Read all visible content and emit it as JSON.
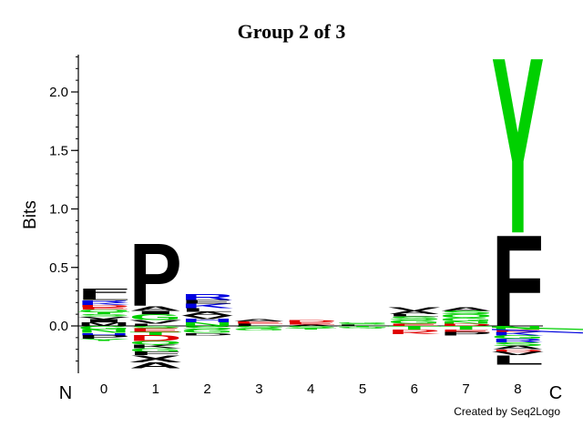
{
  "chart_data": {
    "type": "sequence-logo",
    "title": "Group 2 of 3",
    "ylabel": "Bits",
    "ylim": [
      -0.38,
      2.35
    ],
    "yticks": [
      "0.0",
      "0.5",
      "1.0",
      "1.5",
      "2.0"
    ],
    "ytick_values": [
      0.0,
      0.5,
      1.0,
      1.5,
      2.0
    ],
    "positions": [
      "0",
      "1",
      "2",
      "3",
      "4",
      "5",
      "6",
      "7",
      "8"
    ],
    "n_label": "N",
    "c_label": "C",
    "colors": {
      "green": "#00d000",
      "blue": "#0000e0",
      "red": "#e00000",
      "black": "#000000"
    },
    "stacks": [
      {
        "pos": "0",
        "letters": [
          {
            "aa": "M",
            "bits": 0.03,
            "color": "black"
          },
          {
            "aa": "I",
            "bits": 0.03,
            "color": "black"
          },
          {
            "aa": "V",
            "bits": 0.02,
            "color": "black"
          },
          {
            "aa": "S",
            "bits": 0.02,
            "color": "green"
          },
          {
            "aa": "T",
            "bits": 0.02,
            "color": "green"
          },
          {
            "aa": "Q",
            "bits": 0.02,
            "color": "green"
          },
          {
            "aa": "E",
            "bits": 0.02,
            "color": "red"
          },
          {
            "aa": "D",
            "bits": 0.02,
            "color": "red"
          },
          {
            "aa": "K",
            "bits": 0.02,
            "color": "blue"
          },
          {
            "aa": "R",
            "bits": 0.02,
            "color": "blue"
          },
          {
            "aa": "L",
            "bits": 0.04,
            "color": "black"
          },
          {
            "aa": "F",
            "bits": 0.06,
            "color": "black"
          }
        ],
        "neg": [
          {
            "aa": "G",
            "bits": 0.03,
            "color": "green"
          },
          {
            "aa": "N",
            "bits": 0.03,
            "color": "green"
          },
          {
            "aa": "H",
            "bits": 0.02,
            "color": "blue"
          },
          {
            "aa": "P",
            "bits": 0.03,
            "color": "black"
          },
          {
            "aa": "Y",
            "bits": 0.02,
            "color": "green"
          }
        ]
      },
      {
        "pos": "1",
        "letters": [
          {
            "aa": "L",
            "bits": 0.02,
            "color": "black"
          },
          {
            "aa": "V",
            "bits": 0.03,
            "color": "black"
          },
          {
            "aa": "G",
            "bits": 0.05,
            "color": "green"
          },
          {
            "aa": "I",
            "bits": 0.03,
            "color": "black"
          },
          {
            "aa": "A",
            "bits": 0.04,
            "color": "black"
          },
          {
            "aa": "P",
            "bits": 0.55,
            "color": "black"
          }
        ],
        "neg": [
          {
            "aa": "S",
            "bits": 0.02,
            "color": "green"
          },
          {
            "aa": "E",
            "bits": 0.03,
            "color": "red"
          },
          {
            "aa": "T",
            "bits": 0.03,
            "color": "green"
          },
          {
            "aa": "D",
            "bits": 0.05,
            "color": "red"
          },
          {
            "aa": "Q",
            "bits": 0.03,
            "color": "green"
          },
          {
            "aa": "K",
            "bits": 0.03,
            "color": "black"
          },
          {
            "aa": "G",
            "bits": 0.03,
            "color": "green"
          },
          {
            "aa": "F",
            "bits": 0.03,
            "color": "black"
          },
          {
            "aa": "X",
            "bits": 0.06,
            "color": "black"
          },
          {
            "aa": "A",
            "bits": 0.05,
            "color": "black"
          }
        ]
      },
      {
        "pos": "2",
        "letters": [
          {
            "aa": "N",
            "bits": 0.03,
            "color": "green"
          },
          {
            "aa": "H",
            "bits": 0.03,
            "color": "blue"
          },
          {
            "aa": "V",
            "bits": 0.03,
            "color": "black"
          },
          {
            "aa": "A",
            "bits": 0.03,
            "color": "black"
          },
          {
            "aa": "L",
            "bits": 0.03,
            "color": "black"
          },
          {
            "aa": "K",
            "bits": 0.04,
            "color": "blue"
          },
          {
            "aa": "E",
            "bits": 0.03,
            "color": "black"
          },
          {
            "aa": "R",
            "bits": 0.05,
            "color": "blue"
          }
        ],
        "neg": [
          {
            "aa": "S",
            "bits": 0.03,
            "color": "green"
          },
          {
            "aa": "G",
            "bits": 0.03,
            "color": "green"
          },
          {
            "aa": "D",
            "bits": 0.02,
            "color": "black"
          }
        ]
      },
      {
        "pos": "3",
        "letters": [
          {
            "aa": "L",
            "bits": 0.02,
            "color": "black"
          },
          {
            "aa": "E",
            "bits": 0.02,
            "color": "red"
          },
          {
            "aa": "A",
            "bits": 0.02,
            "color": "black"
          }
        ],
        "neg": [
          {
            "aa": "S",
            "bits": 0.02,
            "color": "green"
          },
          {
            "aa": "G",
            "bits": 0.02,
            "color": "green"
          }
        ]
      },
      {
        "pos": "4",
        "letters": [
          {
            "aa": "A",
            "bits": 0.01,
            "color": "black"
          },
          {
            "aa": "E",
            "bits": 0.02,
            "color": "red"
          },
          {
            "aa": "D",
            "bits": 0.02,
            "color": "red"
          }
        ],
        "neg": [
          {
            "aa": "S",
            "bits": 0.02,
            "color": "green"
          },
          {
            "aa": "T",
            "bits": 0.01,
            "color": "green"
          }
        ]
      },
      {
        "pos": "5",
        "letters": [
          {
            "aa": "L",
            "bits": 0.01,
            "color": "black"
          },
          {
            "aa": "S",
            "bits": 0.01,
            "color": "green"
          },
          {
            "aa": "G",
            "bits": 0.01,
            "color": "green"
          }
        ],
        "neg": [
          {
            "aa": "T",
            "bits": 0.01,
            "color": "green"
          },
          {
            "aa": "Q",
            "bits": 0.01,
            "color": "green"
          }
        ]
      },
      {
        "pos": "6",
        "letters": [
          {
            "aa": "E",
            "bits": 0.02,
            "color": "red"
          },
          {
            "aa": "G",
            "bits": 0.03,
            "color": "green"
          },
          {
            "aa": "S",
            "bits": 0.03,
            "color": "green"
          },
          {
            "aa": "L",
            "bits": 0.02,
            "color": "black"
          },
          {
            "aa": "A",
            "bits": 0.03,
            "color": "black"
          },
          {
            "aa": "V",
            "bits": 0.03,
            "color": "black"
          }
        ],
        "neg": [
          {
            "aa": "T",
            "bits": 0.03,
            "color": "green"
          },
          {
            "aa": "D",
            "bits": 0.02,
            "color": "red"
          },
          {
            "aa": "K",
            "bits": 0.02,
            "color": "red"
          }
        ]
      },
      {
        "pos": "7",
        "letters": [
          {
            "aa": "D",
            "bits": 0.02,
            "color": "red"
          },
          {
            "aa": "N",
            "bits": 0.02,
            "color": "green"
          },
          {
            "aa": "G",
            "bits": 0.03,
            "color": "green"
          },
          {
            "aa": "Q",
            "bits": 0.03,
            "color": "green"
          },
          {
            "aa": "S",
            "bits": 0.03,
            "color": "green"
          },
          {
            "aa": "A",
            "bits": 0.03,
            "color": "black"
          }
        ],
        "neg": [
          {
            "aa": "T",
            "bits": 0.03,
            "color": "green"
          },
          {
            "aa": "E",
            "bits": 0.02,
            "color": "red"
          },
          {
            "aa": "P",
            "bits": 0.03,
            "color": "black"
          }
        ]
      },
      {
        "pos": "8",
        "letters": [
          {
            "aa": "F",
            "bits": 0.8,
            "color": "black"
          },
          {
            "aa": "Y",
            "bits": 1.54,
            "color": "green"
          }
        ],
        "neg": [
          {
            "aa": "N",
            "bits": 0.03,
            "color": "green"
          },
          {
            "aa": "E",
            "bits": 0.02,
            "color": "red"
          },
          {
            "aa": "K",
            "bits": 0.03,
            "color": "blue"
          },
          {
            "aa": "G",
            "bits": 0.03,
            "color": "green"
          },
          {
            "aa": "R",
            "bits": 0.03,
            "color": "blue"
          },
          {
            "aa": "S",
            "bits": 0.03,
            "color": "green"
          },
          {
            "aa": "A",
            "bits": 0.03,
            "color": "black"
          },
          {
            "aa": "D",
            "bits": 0.02,
            "color": "red"
          },
          {
            "aa": "V",
            "bits": 0.03,
            "color": "black"
          },
          {
            "aa": "L",
            "bits": 0.08,
            "color": "black"
          }
        ]
      }
    ],
    "overflow_strands": [
      {
        "color": "green",
        "from_bits": -0.01,
        "to_bits": -0.03
      },
      {
        "color": "blue",
        "from_bits": -0.03,
        "to_bits": -0.06
      }
    ]
  },
  "footer": {
    "credit": "Created by Seq2Logo"
  }
}
